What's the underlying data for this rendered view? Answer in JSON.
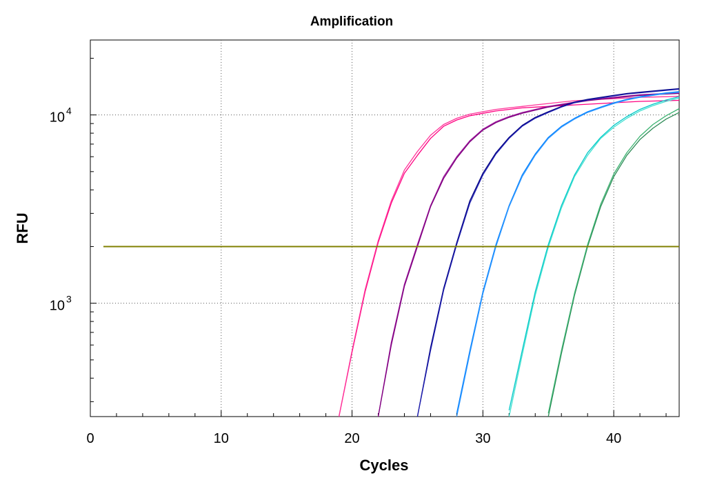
{
  "chart_data": {
    "type": "line",
    "title": "Amplification",
    "xlabel": "Cycles",
    "ylabel": "RFU",
    "xlim": [
      0,
      45
    ],
    "ylim": [
      250,
      25000
    ],
    "y_scale": "log",
    "x_ticks": [
      0,
      10,
      20,
      30,
      40
    ],
    "x_tick_labels": [
      "0",
      "10",
      "20",
      "30",
      "40"
    ],
    "y_ticks": [
      {
        "value": 1000,
        "base": "10",
        "exponent": "3"
      },
      {
        "value": 10000,
        "base": "10",
        "exponent": "4"
      }
    ],
    "grid": true,
    "threshold": {
      "value": 2000,
      "x_start": 1,
      "x_end": 45,
      "color": "#808000"
    },
    "x": [
      18.5,
      19,
      20,
      21,
      22,
      23,
      24,
      25,
      26,
      27,
      28,
      29,
      30,
      31,
      32,
      33,
      34,
      35,
      36,
      37,
      38,
      39,
      40,
      41,
      42,
      43,
      44,
      45
    ],
    "series": [
      {
        "color": "#ff0080",
        "values": [
          null,
          250,
          550,
          1150,
          2100,
          3400,
          4900,
          6100,
          7500,
          8700,
          9400,
          9900,
          10200,
          10500,
          10700,
          10900,
          11000,
          11100,
          11200,
          11300,
          11400,
          11500,
          11600,
          11700,
          11800,
          11850,
          11900,
          11950
        ]
      },
      {
        "color": "#ff3399",
        "values": [
          null,
          250,
          560,
          1180,
          2150,
          3500,
          5100,
          6400,
          7800,
          8900,
          9600,
          10100,
          10400,
          10700,
          10900,
          11100,
          11300,
          11500,
          11700,
          11900,
          12000,
          12100,
          12200,
          12300,
          12400,
          12450,
          12500,
          12550
        ]
      },
      {
        "color": "#9c1a9c",
        "values": [
          null,
          null,
          null,
          null,
          250,
          620,
          1260,
          2050,
          3300,
          4700,
          6000,
          7300,
          8400,
          9200,
          9800,
          10300,
          10700,
          11100,
          11400,
          11700,
          12000,
          12200,
          12400,
          12600,
          12800,
          12900,
          13000,
          13100
        ]
      },
      {
        "color": "#800080",
        "values": [
          null,
          null,
          null,
          null,
          250,
          600,
          1230,
          2000,
          3250,
          4600,
          5900,
          7200,
          8300,
          9100,
          9700,
          10200,
          10600,
          11000,
          11300,
          11600,
          11900,
          12100,
          12300,
          12500,
          12700,
          12800,
          12900,
          13000
        ]
      },
      {
        "color": "#000080",
        "values": [
          null,
          null,
          null,
          null,
          null,
          null,
          null,
          250,
          580,
          1200,
          2100,
          3500,
          4900,
          6300,
          7600,
          8800,
          9700,
          10400,
          11100,
          11700,
          12100,
          12400,
          12700,
          13000,
          13200,
          13400,
          13600,
          13800
        ]
      },
      {
        "color": "#2020b0",
        "values": [
          null,
          null,
          null,
          null,
          null,
          null,
          null,
          250,
          560,
          1170,
          2050,
          3400,
          4800,
          6200,
          7500,
          8700,
          9600,
          10300,
          11000,
          11600,
          12000,
          12300,
          12600,
          12900,
          13100,
          13300,
          13500,
          13700
        ]
      },
      {
        "color": "#0080ff",
        "values": [
          null,
          null,
          null,
          null,
          null,
          null,
          null,
          null,
          null,
          null,
          260,
          560,
          1150,
          2050,
          3300,
          4800,
          6200,
          7600,
          8700,
          9600,
          10400,
          11000,
          11600,
          12100,
          12500,
          12800,
          13100,
          13300
        ]
      },
      {
        "color": "#3399ff",
        "values": [
          null,
          null,
          null,
          null,
          null,
          null,
          null,
          null,
          null,
          null,
          250,
          540,
          1120,
          2000,
          3250,
          4700,
          6100,
          7500,
          8600,
          9500,
          10300,
          10900,
          11500,
          12000,
          12400,
          12700,
          13000,
          13200
        ]
      },
      {
        "color": "#00c8c8",
        "values": [
          null,
          null,
          null,
          null,
          null,
          null,
          null,
          null,
          null,
          null,
          null,
          null,
          null,
          null,
          270,
          560,
          1150,
          2050,
          3300,
          4800,
          6300,
          7600,
          8800,
          9800,
          10700,
          11400,
          12000,
          12500
        ]
      },
      {
        "color": "#40e0d0",
        "values": [
          null,
          null,
          null,
          null,
          null,
          null,
          null,
          null,
          null,
          null,
          null,
          null,
          null,
          null,
          250,
          530,
          1100,
          1980,
          3200,
          4700,
          6100,
          7500,
          8600,
          9600,
          10500,
          11200,
          11800,
          12300
        ]
      },
      {
        "color": "#2e8b57",
        "values": [
          null,
          null,
          null,
          null,
          null,
          null,
          null,
          null,
          null,
          null,
          null,
          null,
          null,
          null,
          null,
          null,
          null,
          250,
          540,
          1100,
          2000,
          3250,
          4700,
          6100,
          7400,
          8500,
          9500,
          10300
        ]
      },
      {
        "color": "#3cb371",
        "values": [
          null,
          null,
          null,
          null,
          null,
          null,
          null,
          null,
          null,
          null,
          null,
          null,
          null,
          null,
          null,
          null,
          null,
          260,
          560,
          1130,
          2050,
          3350,
          4850,
          6300,
          7700,
          8900,
          9900,
          10800
        ]
      }
    ]
  }
}
